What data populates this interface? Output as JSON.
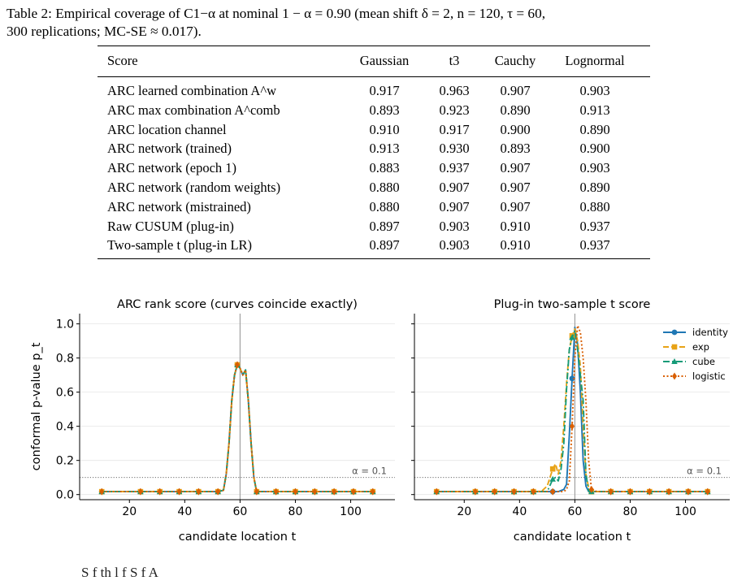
{
  "caption": {
    "label": "Table 2:",
    "text_line1": "Empirical coverage of C1−α at nominal 1 − α = 0.90 (mean shift δ = 2, n = 120, τ = 60,",
    "text_line2": "300 replications; MC-SE ≈ 0.017)."
  },
  "table": {
    "headers": [
      "Score",
      "Gaussian",
      "t3",
      "Cauchy",
      "Lognormal"
    ],
    "rows": [
      {
        "score": "ARC learned combination A^w",
        "values": [
          "0.917",
          "0.963",
          "0.907",
          "0.903"
        ]
      },
      {
        "score": "ARC max combination A^comb",
        "values": [
          "0.893",
          "0.923",
          "0.890",
          "0.913"
        ]
      },
      {
        "score": "ARC location channel",
        "values": [
          "0.910",
          "0.917",
          "0.900",
          "0.890"
        ]
      },
      {
        "score": "ARC network (trained)",
        "values": [
          "0.913",
          "0.930",
          "0.893",
          "0.900"
        ]
      },
      {
        "score": "ARC network (epoch 1)",
        "values": [
          "0.883",
          "0.937",
          "0.907",
          "0.903"
        ]
      },
      {
        "score": "ARC network (random weights)",
        "values": [
          "0.880",
          "0.907",
          "0.907",
          "0.890"
        ]
      },
      {
        "score": "ARC network (mistrained)",
        "values": [
          "0.880",
          "0.907",
          "0.907",
          "0.880"
        ]
      },
      {
        "score": "Raw CUSUM (plug-in)",
        "values": [
          "0.897",
          "0.903",
          "0.910",
          "0.937"
        ]
      },
      {
        "score": "Two-sample t (plug-in LR)",
        "values": [
          "0.897",
          "0.903",
          "0.910",
          "0.937"
        ]
      }
    ]
  },
  "chart_data": [
    {
      "type": "line",
      "title": "ARC rank score (curves coincide exactly)",
      "xlabel": "candidate location t",
      "ylabel": "conformal p-value p_t",
      "xlim": [
        2,
        116
      ],
      "ylim": [
        -0.03,
        1.06
      ],
      "xticks": [
        20,
        40,
        60,
        80,
        100
      ],
      "yticks": [
        0.0,
        0.2,
        0.4,
        0.6,
        0.8,
        1.0
      ],
      "vline": 60,
      "hline": 0.1,
      "hline_label": "α = 0.1",
      "grid": "horizontal",
      "series": [
        {
          "name": "identity",
          "color": "#1f77b4",
          "x": [
            10,
            12,
            14,
            16,
            18,
            20,
            22,
            24,
            26,
            28,
            30,
            32,
            34,
            36,
            38,
            40,
            42,
            44,
            46,
            48,
            50,
            52,
            54,
            55,
            56,
            57,
            58,
            59,
            60,
            61,
            62,
            63,
            64,
            65,
            66,
            68,
            70,
            72,
            74,
            76,
            78,
            80,
            82,
            84,
            86,
            88,
            90,
            92,
            94,
            96,
            98,
            100,
            102,
            104,
            106,
            108
          ],
          "y": [
            0.017,
            0.017,
            0.017,
            0.017,
            0.017,
            0.017,
            0.017,
            0.017,
            0.017,
            0.017,
            0.017,
            0.017,
            0.017,
            0.017,
            0.017,
            0.017,
            0.017,
            0.017,
            0.017,
            0.017,
            0.017,
            0.017,
            0.025,
            0.12,
            0.3,
            0.55,
            0.7,
            0.76,
            0.74,
            0.7,
            0.73,
            0.55,
            0.3,
            0.1,
            0.017,
            0.017,
            0.017,
            0.017,
            0.017,
            0.017,
            0.017,
            0.017,
            0.017,
            0.017,
            0.017,
            0.017,
            0.017,
            0.017,
            0.017,
            0.017,
            0.017,
            0.017,
            0.017,
            0.017,
            0.017,
            0.017
          ]
        },
        {
          "name": "exp",
          "color": "#e8a317",
          "x": [
            10,
            12,
            14,
            16,
            18,
            20,
            22,
            24,
            26,
            28,
            30,
            32,
            34,
            36,
            38,
            40,
            42,
            44,
            46,
            48,
            50,
            52,
            54,
            55,
            56,
            57,
            58,
            59,
            60,
            61,
            62,
            63,
            64,
            65,
            66,
            68,
            70,
            72,
            74,
            76,
            78,
            80,
            82,
            84,
            86,
            88,
            90,
            92,
            94,
            96,
            98,
            100,
            102,
            104,
            106,
            108
          ],
          "y": [
            0.017,
            0.017,
            0.017,
            0.017,
            0.017,
            0.017,
            0.017,
            0.017,
            0.017,
            0.017,
            0.017,
            0.017,
            0.017,
            0.017,
            0.017,
            0.017,
            0.017,
            0.017,
            0.017,
            0.017,
            0.017,
            0.017,
            0.025,
            0.12,
            0.3,
            0.55,
            0.7,
            0.76,
            0.74,
            0.7,
            0.73,
            0.55,
            0.3,
            0.1,
            0.017,
            0.017,
            0.017,
            0.017,
            0.017,
            0.017,
            0.017,
            0.017,
            0.017,
            0.017,
            0.017,
            0.017,
            0.017,
            0.017,
            0.017,
            0.017,
            0.017,
            0.017,
            0.017,
            0.017,
            0.017,
            0.017
          ]
        },
        {
          "name": "cube",
          "color": "#159a78",
          "x": [
            10,
            12,
            14,
            16,
            18,
            20,
            22,
            24,
            26,
            28,
            30,
            32,
            34,
            36,
            38,
            40,
            42,
            44,
            46,
            48,
            50,
            52,
            54,
            55,
            56,
            57,
            58,
            59,
            60,
            61,
            62,
            63,
            64,
            65,
            66,
            68,
            70,
            72,
            74,
            76,
            78,
            80,
            82,
            84,
            86,
            88,
            90,
            92,
            94,
            96,
            98,
            100,
            102,
            104,
            106,
            108
          ],
          "y": [
            0.017,
            0.017,
            0.017,
            0.017,
            0.017,
            0.017,
            0.017,
            0.017,
            0.017,
            0.017,
            0.017,
            0.017,
            0.017,
            0.017,
            0.017,
            0.017,
            0.017,
            0.017,
            0.017,
            0.017,
            0.017,
            0.017,
            0.025,
            0.12,
            0.3,
            0.55,
            0.7,
            0.76,
            0.74,
            0.7,
            0.73,
            0.55,
            0.3,
            0.1,
            0.017,
            0.017,
            0.017,
            0.017,
            0.017,
            0.017,
            0.017,
            0.017,
            0.017,
            0.017,
            0.017,
            0.017,
            0.017,
            0.017,
            0.017,
            0.017,
            0.017,
            0.017,
            0.017,
            0.017,
            0.017,
            0.017
          ]
        },
        {
          "name": "logistic",
          "color": "#d95f02",
          "x": [
            10,
            12,
            14,
            16,
            18,
            20,
            22,
            24,
            26,
            28,
            30,
            32,
            34,
            36,
            38,
            40,
            42,
            44,
            46,
            48,
            50,
            52,
            54,
            55,
            56,
            57,
            58,
            59,
            60,
            61,
            62,
            63,
            64,
            65,
            66,
            68,
            70,
            72,
            74,
            76,
            78,
            80,
            82,
            84,
            86,
            88,
            90,
            92,
            94,
            96,
            98,
            100,
            102,
            104,
            106,
            108
          ],
          "y": [
            0.017,
            0.017,
            0.017,
            0.017,
            0.017,
            0.017,
            0.017,
            0.017,
            0.017,
            0.017,
            0.017,
            0.017,
            0.017,
            0.017,
            0.017,
            0.017,
            0.017,
            0.017,
            0.017,
            0.017,
            0.017,
            0.017,
            0.025,
            0.12,
            0.3,
            0.55,
            0.7,
            0.76,
            0.74,
            0.7,
            0.73,
            0.55,
            0.3,
            0.1,
            0.017,
            0.017,
            0.017,
            0.017,
            0.017,
            0.017,
            0.017,
            0.017,
            0.017,
            0.017,
            0.017,
            0.017,
            0.017,
            0.017,
            0.017,
            0.017,
            0.017,
            0.017,
            0.017,
            0.017,
            0.017,
            0.017
          ]
        }
      ]
    },
    {
      "type": "line",
      "title": "Plug-in two-sample t score",
      "xlabel": "candidate location t",
      "xlim": [
        2,
        116
      ],
      "ylim": [
        -0.03,
        1.06
      ],
      "xticks": [
        20,
        40,
        60,
        80,
        100
      ],
      "yticks": [
        0.0,
        0.2,
        0.4,
        0.6,
        0.8,
        1.0
      ],
      "vline": 60,
      "hline": 0.1,
      "hline_label": "α = 0.1",
      "grid": "horizontal",
      "legend": "top-right",
      "series": [
        {
          "name": "identity",
          "color": "#1f77b4",
          "x": [
            10,
            12,
            14,
            16,
            18,
            20,
            22,
            24,
            26,
            28,
            30,
            32,
            34,
            36,
            38,
            40,
            42,
            44,
            46,
            48,
            50,
            52,
            54,
            56,
            57,
            58,
            59,
            60,
            61,
            62,
            63,
            64,
            65,
            66,
            68,
            70,
            72,
            74,
            76,
            78,
            80,
            82,
            84,
            86,
            88,
            90,
            92,
            94,
            96,
            98,
            100,
            102,
            104,
            106,
            108
          ],
          "y": [
            0.017,
            0.017,
            0.017,
            0.017,
            0.017,
            0.017,
            0.017,
            0.017,
            0.017,
            0.017,
            0.017,
            0.017,
            0.017,
            0.017,
            0.017,
            0.017,
            0.017,
            0.017,
            0.017,
            0.017,
            0.017,
            0.017,
            0.017,
            0.03,
            0.06,
            0.35,
            0.68,
            0.98,
            0.88,
            0.6,
            0.2,
            0.05,
            0.017,
            0.017,
            0.017,
            0.017,
            0.017,
            0.017,
            0.017,
            0.017,
            0.017,
            0.017,
            0.017,
            0.017,
            0.017,
            0.017,
            0.017,
            0.017,
            0.017,
            0.017,
            0.017,
            0.017,
            0.017,
            0.017,
            0.017
          ]
        },
        {
          "name": "exp",
          "color": "#e8a317",
          "x": [
            10,
            12,
            14,
            16,
            18,
            20,
            22,
            24,
            26,
            28,
            30,
            32,
            34,
            36,
            38,
            40,
            42,
            44,
            46,
            48,
            50,
            52,
            53,
            54,
            55,
            56,
            57,
            58,
            59,
            60,
            61,
            62,
            63,
            64,
            65,
            66,
            68,
            70,
            72,
            74,
            76,
            78,
            80,
            82,
            84,
            86,
            88,
            90,
            92,
            94,
            96,
            98,
            100,
            102,
            104,
            106,
            108
          ],
          "y": [
            0.017,
            0.017,
            0.017,
            0.017,
            0.017,
            0.017,
            0.017,
            0.017,
            0.017,
            0.017,
            0.017,
            0.017,
            0.017,
            0.017,
            0.017,
            0.017,
            0.017,
            0.017,
            0.017,
            0.02,
            0.05,
            0.15,
            0.18,
            0.12,
            0.2,
            0.4,
            0.65,
            0.85,
            0.93,
            0.97,
            0.9,
            0.75,
            0.4,
            0.12,
            0.04,
            0.017,
            0.017,
            0.017,
            0.017,
            0.017,
            0.017,
            0.017,
            0.017,
            0.017,
            0.017,
            0.017,
            0.017,
            0.017,
            0.017,
            0.017,
            0.017,
            0.017,
            0.017,
            0.017,
            0.017,
            0.017,
            0.017
          ]
        },
        {
          "name": "cube",
          "color": "#159a78",
          "x": [
            10,
            12,
            14,
            16,
            18,
            20,
            22,
            24,
            26,
            28,
            30,
            32,
            34,
            36,
            38,
            40,
            42,
            44,
            46,
            48,
            50,
            52,
            53,
            54,
            55,
            56,
            57,
            58,
            59,
            60,
            61,
            62,
            63,
            64,
            65,
            66,
            68,
            70,
            72,
            74,
            76,
            78,
            80,
            82,
            84,
            86,
            88,
            90,
            92,
            94,
            96,
            98,
            100,
            102,
            104,
            106,
            108
          ],
          "y": [
            0.017,
            0.017,
            0.017,
            0.017,
            0.017,
            0.017,
            0.017,
            0.017,
            0.017,
            0.017,
            0.017,
            0.017,
            0.017,
            0.017,
            0.017,
            0.017,
            0.017,
            0.017,
            0.017,
            0.017,
            0.017,
            0.09,
            0.1,
            0.08,
            0.15,
            0.3,
            0.62,
            0.85,
            0.92,
            0.96,
            0.85,
            0.7,
            0.55,
            0.12,
            0.02,
            0.017,
            0.017,
            0.017,
            0.017,
            0.017,
            0.017,
            0.017,
            0.017,
            0.017,
            0.017,
            0.017,
            0.017,
            0.017,
            0.017,
            0.017,
            0.017,
            0.017,
            0.017,
            0.017,
            0.017,
            0.017,
            0.017
          ]
        },
        {
          "name": "logistic",
          "color": "#d95f02",
          "x": [
            10,
            12,
            14,
            16,
            18,
            20,
            22,
            24,
            26,
            28,
            30,
            32,
            34,
            36,
            38,
            40,
            42,
            44,
            46,
            48,
            50,
            52,
            54,
            56,
            57,
            58,
            59,
            60,
            61,
            62,
            63,
            64,
            65,
            66,
            68,
            70,
            72,
            74,
            76,
            78,
            80,
            82,
            84,
            86,
            88,
            90,
            92,
            94,
            96,
            98,
            100,
            102,
            104,
            106,
            108
          ],
          "y": [
            0.017,
            0.017,
            0.017,
            0.017,
            0.017,
            0.017,
            0.017,
            0.017,
            0.017,
            0.017,
            0.017,
            0.017,
            0.017,
            0.017,
            0.017,
            0.017,
            0.017,
            0.017,
            0.017,
            0.017,
            0.017,
            0.017,
            0.017,
            0.017,
            0.03,
            0.08,
            0.4,
            0.8,
            0.99,
            0.95,
            0.8,
            0.55,
            0.2,
            0.03,
            0.017,
            0.017,
            0.017,
            0.017,
            0.017,
            0.017,
            0.017,
            0.017,
            0.017,
            0.017,
            0.017,
            0.017,
            0.017,
            0.017,
            0.017,
            0.017,
            0.017,
            0.017,
            0.017,
            0.017,
            0.017
          ]
        }
      ]
    }
  ],
  "bottom_text": "S f   th     l     f           S                                    f         A"
}
